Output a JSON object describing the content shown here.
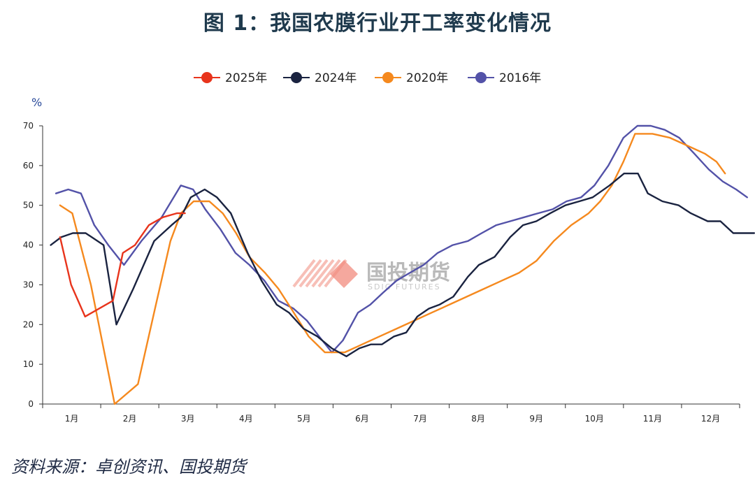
{
  "title": "图 1：我国农膜行业开工率变化情况",
  "source": "资料来源：卓创资讯、国投期货",
  "watermark": {
    "name": "国投期货",
    "sub": "SDIC FUTURES",
    "color": "#f28b7d"
  },
  "chart_data": {
    "type": "line",
    "unit_label": "%",
    "ylim": [
      0,
      70
    ],
    "yticks": [
      0,
      10,
      20,
      30,
      40,
      50,
      60,
      70
    ],
    "xlim": [
      0.5,
      12.5
    ],
    "month_labels": [
      "1月",
      "2月",
      "3月",
      "4月",
      "5月",
      "6月",
      "7月",
      "8月",
      "9月",
      "10月",
      "11月",
      "12月"
    ],
    "legend_position": "top",
    "grid": false,
    "series": [
      {
        "name": "2025年",
        "color": "#e8341c",
        "x": [
          0.8,
          0.99,
          1.23,
          1.71,
          1.88,
          2.09,
          2.33,
          2.57,
          2.81,
          2.95
        ],
        "y": [
          42,
          30,
          22,
          26,
          38,
          40,
          45,
          47,
          48,
          48
        ]
      },
      {
        "name": "2024年",
        "color": "#1a2340",
        "x": [
          0.64,
          0.82,
          1.02,
          1.24,
          1.55,
          1.77,
          2.06,
          2.42,
          2.72,
          2.88,
          3.05,
          3.29,
          3.5,
          3.74,
          4.03,
          4.27,
          4.53,
          4.74,
          4.99,
          5.23,
          5.48,
          5.73,
          5.95,
          6.15,
          6.34,
          6.55,
          6.76,
          6.95,
          7.15,
          7.33,
          7.57,
          7.82,
          8.01,
          8.28,
          8.55,
          8.77,
          9.0,
          9.24,
          9.5,
          9.74,
          9.97,
          10.26,
          10.51,
          10.75,
          10.92,
          11.17,
          11.45,
          11.66,
          11.95,
          12.17,
          12.39,
          12.55,
          12.75
        ],
        "y": [
          40,
          42,
          43,
          43,
          40,
          20,
          29,
          41,
          45,
          47,
          52,
          54,
          52,
          48,
          38,
          31,
          25,
          23,
          19,
          17,
          14,
          12,
          14,
          15,
          15,
          17,
          18,
          22,
          24,
          25,
          27,
          32,
          35,
          37,
          42,
          45,
          46,
          48,
          50,
          51,
          52,
          55,
          58,
          58,
          53,
          51,
          50,
          48,
          46,
          46,
          43,
          43,
          43
        ]
      },
      {
        "name": "2020年",
        "color": "#f5891e",
        "x": [
          0.8,
          1.01,
          1.33,
          1.74,
          2.14,
          2.45,
          2.7,
          2.88,
          3.1,
          3.37,
          3.6,
          3.83,
          4.06,
          4.33,
          4.56,
          4.78,
          5.08,
          5.36,
          5.7,
          6.0,
          6.3,
          6.6,
          6.9,
          7.2,
          7.5,
          7.8,
          8.1,
          8.4,
          8.7,
          9.0,
          9.3,
          9.6,
          9.9,
          10.1,
          10.3,
          10.5,
          10.7,
          11.0,
          11.3,
          11.6,
          11.9,
          12.1,
          12.25
        ],
        "y": [
          50,
          48,
          30,
          0,
          5,
          25,
          41,
          48,
          51,
          51,
          48,
          43,
          37,
          33,
          29,
          24,
          17,
          13,
          13,
          15,
          17,
          19,
          21,
          23,
          25,
          27,
          29,
          31,
          33,
          36,
          41,
          45,
          48,
          51,
          55,
          61,
          68,
          68,
          67,
          65,
          63,
          61,
          58
        ]
      },
      {
        "name": "2016年",
        "color": "#5352a8",
        "x": [
          0.73,
          0.94,
          1.16,
          1.39,
          1.63,
          1.9,
          2.2,
          2.55,
          2.88,
          3.09,
          3.3,
          3.56,
          3.82,
          4.06,
          4.32,
          4.56,
          4.82,
          5.05,
          5.26,
          5.48,
          5.67,
          5.93,
          6.14,
          6.36,
          6.59,
          6.82,
          7.06,
          7.3,
          7.56,
          7.82,
          8.06,
          8.31,
          8.55,
          8.79,
          9.03,
          9.28,
          9.52,
          9.77,
          10.0,
          10.24,
          10.5,
          10.74,
          10.97,
          11.21,
          11.46,
          11.72,
          11.97,
          12.21,
          12.44,
          12.63
        ],
        "y": [
          53,
          54,
          53,
          45,
          40,
          35,
          41,
          47,
          55,
          54,
          49,
          44,
          38,
          35,
          31,
          26,
          24,
          21,
          17,
          13,
          16,
          23,
          25,
          28,
          31,
          33,
          35,
          38,
          40,
          41,
          43,
          45,
          46,
          47,
          48,
          49,
          51,
          52,
          55,
          60,
          67,
          70,
          70,
          69,
          67,
          63,
          59,
          56,
          54,
          52
        ]
      }
    ]
  }
}
